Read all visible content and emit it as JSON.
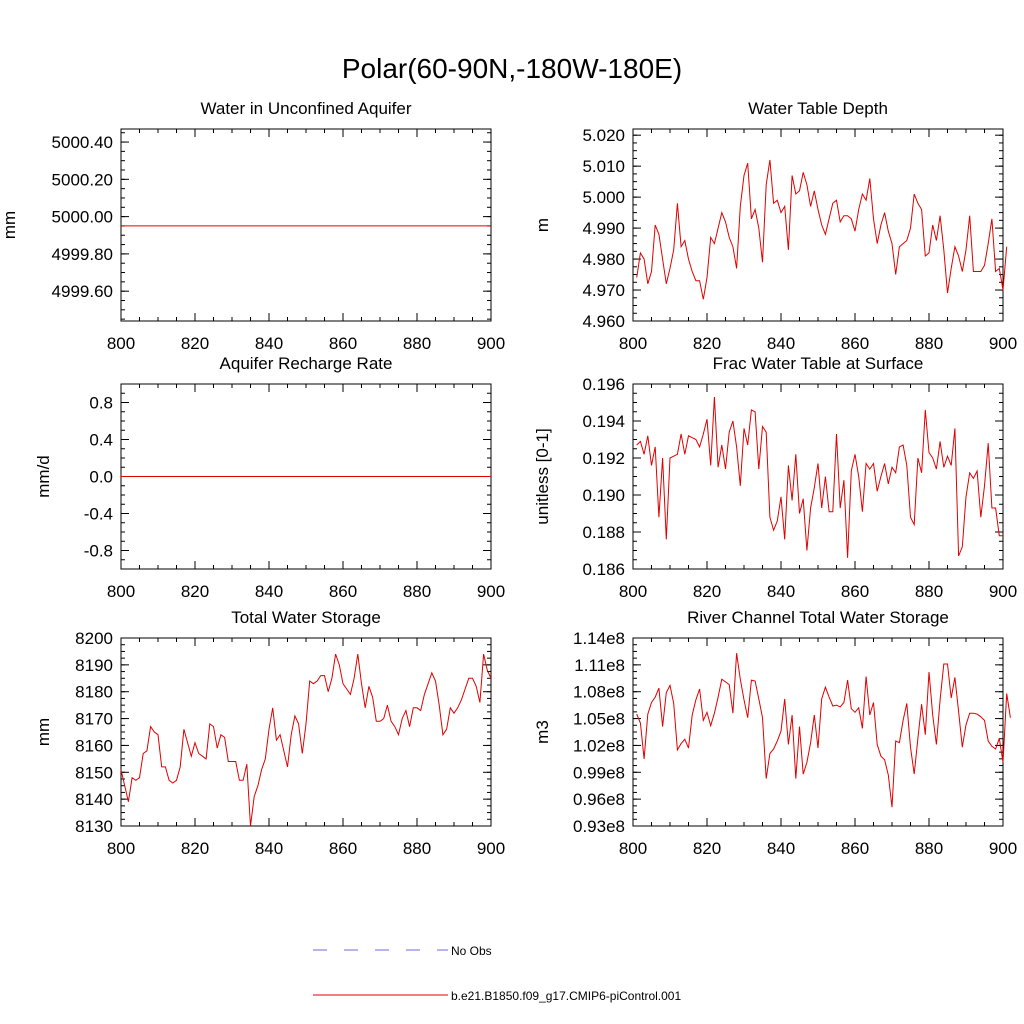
{
  "page": {
    "title": "Polar(60-90N,-180W-180E)"
  },
  "legend": [
    {
      "label": "No Obs",
      "color": "#6b6bd6",
      "dash": true
    },
    {
      "label": "b.e21.B1850.f09_g17.CMIP6-piControl.001",
      "color": "#e00000",
      "dash": false
    }
  ],
  "chart_data": [
    {
      "type": "line",
      "title": "Water in Unconfined Aquifer",
      "xlabel": "",
      "ylabel": "mm",
      "xlim": [
        800,
        900
      ],
      "ylim": [
        4999.44,
        5000.47
      ],
      "xticks": [
        800,
        820,
        840,
        860,
        880,
        900
      ],
      "yticks": [
        4999.6,
        4999.8,
        5000.0,
        5000.2,
        5000.4
      ],
      "ytick_labels": [
        "4999.60",
        "4999.80",
        "5000.00",
        "5000.20",
        "5000.40"
      ],
      "series": [
        {
          "name": "b.e21.B1850.f09_g17.CMIP6-piControl.001",
          "color": "#e00000",
          "x": [
            800,
            900
          ],
          "values": [
            4999.95,
            4999.95
          ]
        }
      ]
    },
    {
      "type": "line",
      "title": "Water Table Depth",
      "xlabel": "",
      "ylabel": "m",
      "xlim": [
        800,
        900
      ],
      "ylim": [
        4.96,
        5.022
      ],
      "xticks": [
        800,
        820,
        840,
        860,
        880,
        900
      ],
      "yticks": [
        4.96,
        4.97,
        4.98,
        4.99,
        5.0,
        5.01,
        5.02
      ],
      "ytick_labels": [
        "4.960",
        "4.970",
        "4.980",
        "4.990",
        "5.000",
        "5.010",
        "5.020"
      ],
      "series": [
        {
          "name": "b.e21.B1850.f09_g17.CMIP6-piControl.001",
          "color": "#e00000",
          "x_start": 801,
          "x_step": 1,
          "values": [
            4.974,
            4.982,
            4.98,
            4.972,
            4.976,
            4.991,
            4.988,
            4.98,
            4.972,
            4.977,
            4.983,
            4.998,
            4.984,
            4.986,
            4.98,
            4.976,
            4.973,
            4.973,
            4.967,
            4.974,
            4.987,
            4.985,
            4.99,
            4.995,
            4.992,
            4.987,
            4.984,
            4.977,
            4.997,
            5.007,
            5.011,
            4.993,
            4.996,
            4.99,
            4.979,
            5.004,
            5.012,
            4.998,
            4.999,
            4.995,
            4.997,
            4.983,
            5.007,
            5.001,
            5.002,
            5.008,
            5.004,
            4.997,
            5.002,
            4.996,
            4.991,
            4.988,
            4.993,
            4.998,
            4.999,
            4.992,
            4.994,
            4.994,
            4.993,
            4.989,
            4.996,
            5.001,
            4.999,
            5.006,
            4.993,
            4.985,
            4.991,
            4.995,
            4.989,
            4.985,
            4.975,
            4.984,
            4.985,
            4.986,
            4.99,
            5.001,
            4.998,
            4.996,
            4.981,
            4.982,
            4.991,
            4.986,
            4.994,
            4.983,
            4.969,
            4.977,
            4.984,
            4.981,
            4.976,
            4.983,
            4.994,
            4.976,
            4.976,
            4.976,
            4.978,
            4.985,
            4.993,
            4.976,
            4.977,
            4.97,
            4.984
          ]
        }
      ]
    },
    {
      "type": "line",
      "title": "Aquifer Recharge Rate",
      "xlabel": "",
      "ylabel": "mm/d",
      "xlim": [
        800,
        900
      ],
      "ylim": [
        -1.0,
        1.0
      ],
      "xticks": [
        800,
        820,
        840,
        860,
        880,
        900
      ],
      "yticks": [
        -0.8,
        -0.4,
        0.0,
        0.4,
        0.8
      ],
      "ytick_labels": [
        "-0.8",
        "-0.4",
        "0.0",
        "0.4",
        "0.8"
      ],
      "series": [
        {
          "name": "b.e21.B1850.f09_g17.CMIP6-piControl.001",
          "color": "#e00000",
          "x": [
            800,
            900
          ],
          "values": [
            0.0,
            0.0
          ]
        }
      ]
    },
    {
      "type": "line",
      "title": "Frac Water Table at Surface",
      "xlabel": "",
      "ylabel": "unitless [0-1]",
      "xlim": [
        800,
        900
      ],
      "ylim": [
        0.186,
        0.196
      ],
      "xticks": [
        800,
        820,
        840,
        860,
        880,
        900
      ],
      "yticks": [
        0.186,
        0.188,
        0.19,
        0.192,
        0.194,
        0.196
      ],
      "ytick_labels": [
        "0.186",
        "0.188",
        "0.190",
        "0.192",
        "0.194",
        "0.196"
      ],
      "series": [
        {
          "name": "b.e21.B1850.f09_g17.CMIP6-piControl.001",
          "color": "#e00000",
          "x_start": 801,
          "x_step": 1,
          "values": [
            0.1927,
            0.1929,
            0.1922,
            0.1932,
            0.1916,
            0.1926,
            0.1888,
            0.192,
            0.1876,
            0.192,
            0.1921,
            0.1922,
            0.1933,
            0.1922,
            0.1932,
            0.1931,
            0.193,
            0.1926,
            0.1933,
            0.1941,
            0.1916,
            0.1953,
            0.1915,
            0.1927,
            0.1914,
            0.1934,
            0.194,
            0.1926,
            0.1905,
            0.1936,
            0.1927,
            0.1946,
            0.1945,
            0.1914,
            0.1937,
            0.1934,
            0.1888,
            0.1881,
            0.1886,
            0.1899,
            0.1876,
            0.1916,
            0.1897,
            0.1922,
            0.189,
            0.1898,
            0.187,
            0.1893,
            0.1904,
            0.1917,
            0.1893,
            0.191,
            0.1891,
            0.1891,
            0.1933,
            0.1893,
            0.1908,
            0.1866,
            0.1913,
            0.1922,
            0.191,
            0.1891,
            0.1917,
            0.1914,
            0.1917,
            0.1902,
            0.191,
            0.1917,
            0.1906,
            0.1915,
            0.1912,
            0.1926,
            0.1927,
            0.1916,
            0.1888,
            0.1884,
            0.192,
            0.1912,
            0.1946,
            0.1923,
            0.192,
            0.1914,
            0.1929,
            0.1915,
            0.1921,
            0.1916,
            0.1936,
            0.1867,
            0.1872,
            0.1899,
            0.1912,
            0.1909,
            0.1913,
            0.1888,
            0.1905,
            0.1928,
            0.1893,
            0.1893,
            0.1878,
            0.1878
          ]
        }
      ]
    },
    {
      "type": "line",
      "title": "Total Water Storage",
      "xlabel": "",
      "ylabel": "mm",
      "xlim": [
        800,
        900
      ],
      "ylim": [
        8130,
        8200
      ],
      "xticks": [
        800,
        820,
        840,
        860,
        880,
        900
      ],
      "yticks": [
        8130,
        8140,
        8150,
        8160,
        8170,
        8180,
        8190,
        8200
      ],
      "ytick_labels": [
        "8130",
        "8140",
        "8150",
        "8160",
        "8170",
        "8180",
        "8190",
        "8200"
      ],
      "series": [
        {
          "name": "b.e21.B1850.f09_g17.CMIP6-piControl.001",
          "color": "#e00000",
          "x_start": 800,
          "x_step": 1,
          "values": [
            8151,
            8145,
            8139,
            8148,
            8147,
            8148,
            8157,
            8158,
            8167,
            8165,
            8164,
            8152,
            8152,
            8147,
            8146,
            8147,
            8152,
            8166,
            8161,
            8156,
            8161,
            8157,
            8156,
            8155,
            8168,
            8167,
            8159,
            8164,
            8163,
            8154,
            8154,
            8154,
            8147,
            8147,
            8153,
            8130,
            8141,
            8145,
            8151,
            8155,
            8166,
            8174,
            8162,
            8164,
            8158,
            8152,
            8164,
            8171,
            8168,
            8157,
            8168,
            8184,
            8183,
            8184,
            8186,
            8186,
            8180,
            8185,
            8194,
            8190,
            8183,
            8181,
            8179,
            8185,
            8194,
            8183,
            8174,
            8182,
            8178,
            8169,
            8169,
            8170,
            8175,
            8169,
            8167,
            8164,
            8170,
            8173,
            8167,
            8174,
            8174,
            8173,
            8179,
            8183,
            8187,
            8184,
            8175,
            8164,
            8166,
            8174,
            8172,
            8174,
            8177,
            8181,
            8185,
            8185,
            8182,
            8176,
            8194,
            8188,
            8185
          ]
        }
      ]
    },
    {
      "type": "line",
      "title": "River Channel Total Water Storage",
      "xlabel": "",
      "ylabel": "m3",
      "xlim": [
        800,
        900
      ],
      "ylim": [
        93000000.0,
        114000000.0
      ],
      "xticks": [
        800,
        820,
        840,
        860,
        880,
        900
      ],
      "yticks": [
        93000000.0,
        96000000.0,
        99000000.0,
        102000000.0,
        105000000.0,
        108000000.0,
        111000000.0,
        114000000.0
      ],
      "ytick_labels": [
        "0.93e8",
        "0.96e8",
        "0.99e8",
        "1.02e8",
        "1.05e8",
        "1.08e8",
        "1.11e8",
        "1.14e8"
      ],
      "series": [
        {
          "name": "b.e21.B1850.f09_g17.CMIP6-piControl.001",
          "color": "#e00000",
          "x_start": 801,
          "x_step": 1,
          "values": [
            105500000.0,
            104500000.0,
            100500000.0,
            105500000.0,
            106800000.0,
            107400000.0,
            108400000.0,
            104100000.0,
            107900000.0,
            108700000.0,
            106700000.0,
            101500000.0,
            102200000.0,
            102700000.0,
            101700000.0,
            105400000.0,
            107100000.0,
            108300000.0,
            104800000.0,
            105700000.0,
            104200000.0,
            105600000.0,
            107400000.0,
            109400000.0,
            109100000.0,
            108800000.0,
            105600000.0,
            112300000.0,
            109400000.0,
            107100000.0,
            105100000.0,
            109300000.0,
            109200000.0,
            107200000.0,
            105100000.0,
            98300000.0,
            101100000.0,
            101600000.0,
            102500000.0,
            103600000.0,
            107200000.0,
            102100000.0,
            105400000.0,
            98300000.0,
            104100000.0,
            98800000.0,
            100100000.0,
            102300000.0,
            105400000.0,
            101700000.0,
            107200000.0,
            108500000.0,
            107400000.0,
            106400000.0,
            106500000.0,
            106300000.0,
            106800000.0,
            109300000.0,
            106100000.0,
            105700000.0,
            106200000.0,
            103900000.0,
            109700000.0,
            105400000.0,
            106800000.0,
            102100000.0,
            100800000.0,
            100400000.0,
            98700000.0,
            95100000.0,
            102500000.0,
            102300000.0,
            104800000.0,
            106700000.0,
            101800000.0,
            98800000.0,
            102800000.0,
            106600000.0,
            103200000.0,
            110200000.0,
            105400000.0,
            102100000.0,
            107100000.0,
            111100000.0,
            111100000.0,
            107300000.0,
            109600000.0,
            105800000.0,
            101800000.0,
            104300000.0,
            105600000.0,
            105600000.0,
            105500000.0,
            105200000.0,
            104800000.0,
            102500000.0,
            101900000.0,
            101600000.0,
            102800000.0,
            100100000.0,
            107800000.0,
            105100000.0
          ]
        }
      ]
    }
  ]
}
